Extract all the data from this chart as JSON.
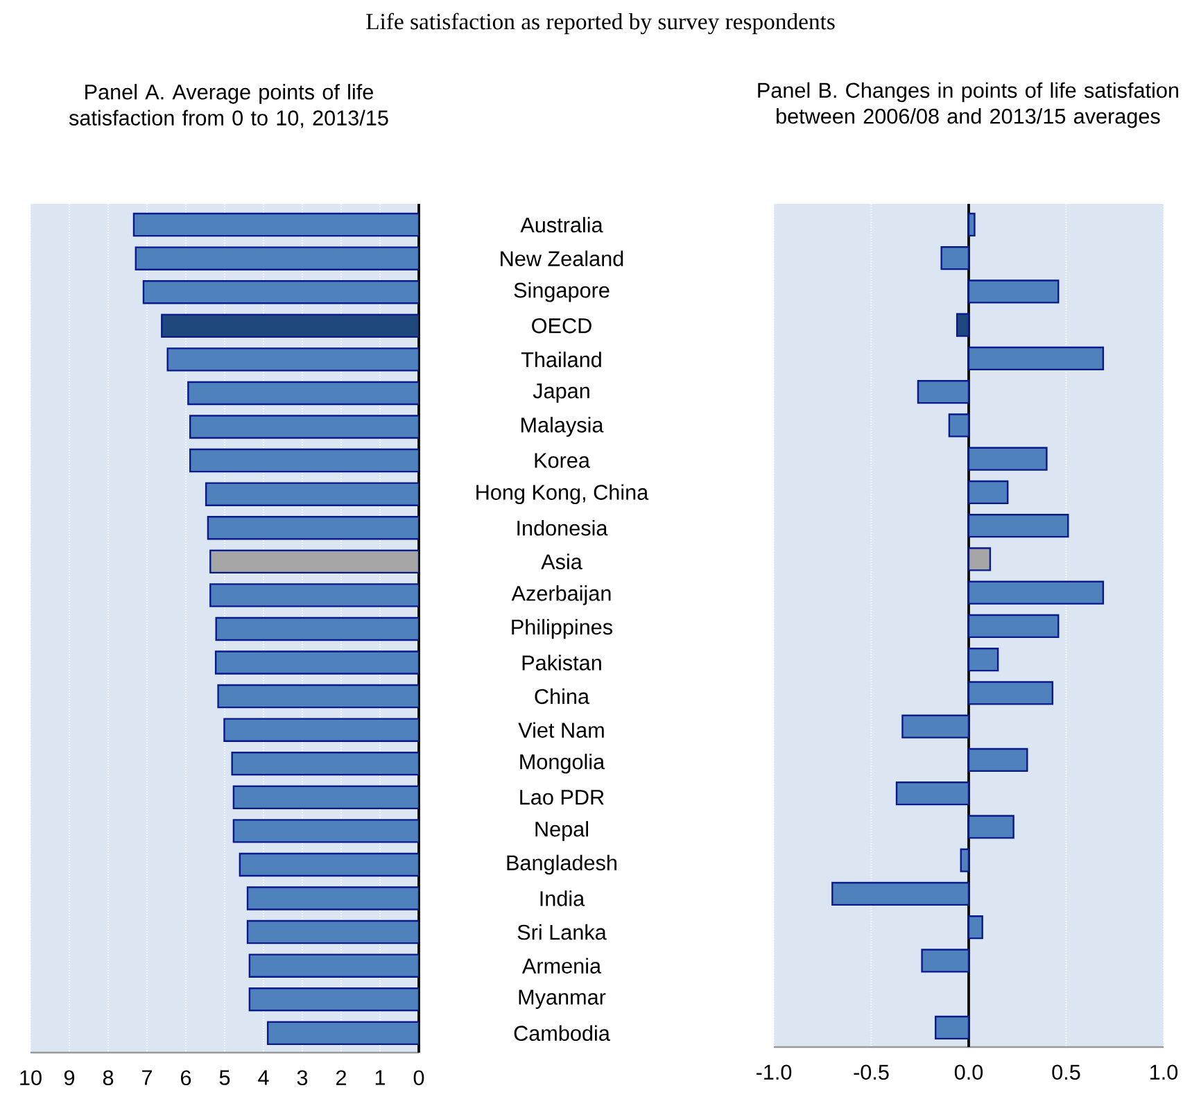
{
  "chart_data": [
    {
      "type": "bar",
      "orientation": "horizontal",
      "title": "Panel A. Average points of life satisfaction from 0 to 10, 2013/15",
      "annotations": [
        "Life satisfaction as reported by survey respondents"
      ],
      "categories": [
        "Australia",
        "New Zealand",
        "Singapore",
        "OECD",
        "Thailand",
        "Japan",
        "Malaysia",
        "Korea",
        "Hong Kong, China",
        "Indonesia",
        "Asia",
        "Azerbaijan",
        "Philippines",
        "Pakistan",
        "China",
        "Viet Nam",
        "Mongolia",
        "Lao PDR",
        "Nepal",
        "Bangladesh",
        "India",
        "Sri Lanka",
        "Armenia",
        "Myanmar",
        "Cambodia"
      ],
      "values": [
        7.34,
        7.29,
        7.09,
        6.62,
        6.47,
        5.94,
        5.89,
        5.89,
        5.48,
        5.43,
        5.37,
        5.37,
        5.22,
        5.23,
        5.17,
        5.01,
        4.81,
        4.77,
        4.77,
        4.61,
        4.41,
        4.41,
        4.36,
        4.36,
        3.89
      ],
      "colors": [
        "#4f81bd",
        "#4f81bd",
        "#4f81bd",
        "#1f497d",
        "#4f81bd",
        "#4f81bd",
        "#4f81bd",
        "#4f81bd",
        "#4f81bd",
        "#4f81bd",
        "#a6a6a6",
        "#4f81bd",
        "#4f81bd",
        "#4f81bd",
        "#4f81bd",
        "#4f81bd",
        "#4f81bd",
        "#4f81bd",
        "#4f81bd",
        "#4f81bd",
        "#4f81bd",
        "#4f81bd",
        "#4f81bd",
        "#4f81bd",
        "#4f81bd"
      ],
      "xlim": [
        10,
        0
      ],
      "xticks": [
        10,
        9,
        8,
        7,
        6,
        5,
        4,
        3,
        2,
        1,
        0
      ],
      "grid": "x"
    },
    {
      "type": "bar",
      "orientation": "horizontal",
      "title": "Panel B. Changes in points of life satisfation between 2006/08 and 2013/15 averages",
      "categories": [
        null,
        null,
        null,
        null,
        null,
        null,
        null,
        null,
        null,
        null,
        null,
        null,
        null,
        null,
        null,
        null,
        null,
        null,
        null,
        null,
        null,
        null,
        null,
        null,
        null
      ],
      "values": [
        0.03,
        -0.14,
        0.46,
        -0.06,
        0.69,
        -0.26,
        -0.1,
        0.4,
        0.2,
        0.51,
        0.11,
        0.69,
        0.46,
        0.15,
        0.43,
        -0.34,
        0.3,
        -0.37,
        0.23,
        -0.04,
        -0.7,
        0.07,
        -0.24,
        null,
        -0.17
      ],
      "colors": [
        "#4f81bd",
        "#4f81bd",
        "#4f81bd",
        "#1f497d",
        "#4f81bd",
        "#4f81bd",
        "#4f81bd",
        "#4f81bd",
        "#4f81bd",
        "#4f81bd",
        "#a6a6a6",
        "#4f81bd",
        "#4f81bd",
        "#4f81bd",
        "#4f81bd",
        "#4f81bd",
        "#4f81bd",
        "#4f81bd",
        "#4f81bd",
        "#4f81bd",
        "#4f81bd",
        "#4f81bd",
        "#4f81bd",
        "#4f81bd",
        "#4f81bd"
      ],
      "xlim": [
        -1,
        1
      ],
      "xticks": [
        {
          "value": -1,
          "label": "-1.0"
        },
        {
          "value": -0.5,
          "label": "-0.5"
        },
        {
          "value": 0,
          "label": "0.0"
        },
        0.5,
        {
          "value": 1,
          "label": "1.0"
        }
      ],
      "grid": "x"
    }
  ]
}
